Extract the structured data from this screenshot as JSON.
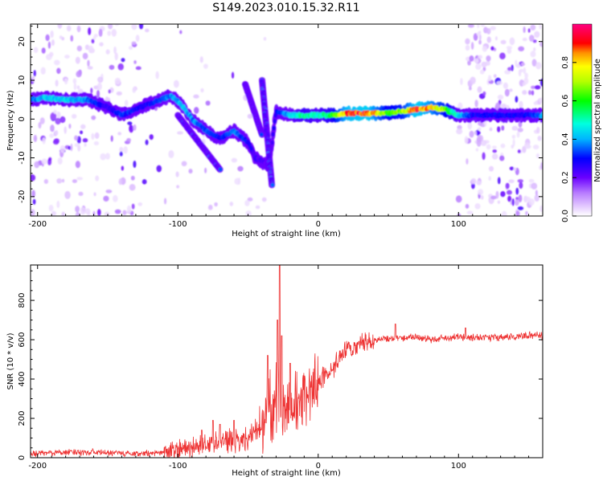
{
  "title": "S149.2023.010.15.32.R11",
  "chart_data": [
    {
      "type": "heatmap",
      "xlabel": "Height of straight line (km)",
      "ylabel": "Frequency (Hz)",
      "xlim": [
        -205,
        160
      ],
      "ylim": [
        -25,
        24.5
      ],
      "x_ticks": [
        -200,
        -100,
        0,
        100
      ],
      "y_ticks": [
        -20,
        -10,
        0,
        10,
        20
      ],
      "tick_labels_x": [
        "-200",
        "-100",
        "0",
        "100"
      ],
      "tick_labels_y": [
        "-20",
        "-10",
        "0",
        "10",
        "20"
      ],
      "colorbar": {
        "label": "Normalized spectral amplitude",
        "range": [
          0,
          1
        ],
        "ticks": [
          0.0,
          0.2,
          0.4,
          0.6,
          0.8
        ],
        "tick_labels": [
          "0.0",
          "0.2",
          "0.4",
          "0.6",
          "0.8"
        ]
      },
      "ridge": [
        {
          "x": -205,
          "f": 5,
          "a": 0.35
        },
        {
          "x": -195,
          "f": 5.5,
          "a": 0.45
        },
        {
          "x": -180,
          "f": 5,
          "a": 0.45
        },
        {
          "x": -165,
          "f": 5,
          "a": 0.4
        },
        {
          "x": -150,
          "f": 3,
          "a": 0.25
        },
        {
          "x": -140,
          "f": 1,
          "a": 0.35
        },
        {
          "x": -130,
          "f": 2.5,
          "a": 0.3
        },
        {
          "x": -120,
          "f": 4,
          "a": 0.3
        },
        {
          "x": -105,
          "f": 6,
          "a": 0.4
        },
        {
          "x": -98,
          "f": 4,
          "a": 0.45
        },
        {
          "x": -90,
          "f": 0,
          "a": 0.4
        },
        {
          "x": -80,
          "f": -3,
          "a": 0.35
        },
        {
          "x": -70,
          "f": -5,
          "a": 0.3
        },
        {
          "x": -60,
          "f": -3,
          "a": 0.4
        },
        {
          "x": -50,
          "f": -6,
          "a": 0.3
        },
        {
          "x": -45,
          "f": -10,
          "a": 0.25
        },
        {
          "x": -35,
          "f": -12,
          "a": 0.22
        },
        {
          "x": -30,
          "f": 2,
          "a": 0.3
        },
        {
          "x": -20,
          "f": 1,
          "a": 0.45
        },
        {
          "x": -10,
          "f": 1,
          "a": 0.55
        },
        {
          "x": 0,
          "f": 1,
          "a": 0.5
        },
        {
          "x": 10,
          "f": 1,
          "a": 0.6
        },
        {
          "x": 20,
          "f": 1.5,
          "a": 0.9
        },
        {
          "x": 35,
          "f": 1.5,
          "a": 0.95
        },
        {
          "x": 50,
          "f": 1.5,
          "a": 0.65
        },
        {
          "x": 60,
          "f": 2,
          "a": 0.7
        },
        {
          "x": 70,
          "f": 2.5,
          "a": 0.95
        },
        {
          "x": 80,
          "f": 3,
          "a": 0.85
        },
        {
          "x": 90,
          "f": 2.5,
          "a": 0.7
        },
        {
          "x": 100,
          "f": 1,
          "a": 0.45
        },
        {
          "x": 110,
          "f": 1,
          "a": 0.3
        },
        {
          "x": 130,
          "f": 1,
          "a": 0.3
        },
        {
          "x": 150,
          "f": 1,
          "a": 0.3
        },
        {
          "x": 160,
          "f": 1,
          "a": 0.4
        }
      ],
      "branches": [
        {
          "x": [
            -40,
            -33
          ],
          "f": [
            10,
            -17
          ],
          "a": 0.3
        },
        {
          "x": [
            -52,
            -40
          ],
          "f": [
            9,
            -4
          ],
          "a": 0.3
        },
        {
          "x": [
            -100,
            -70
          ],
          "f": [
            1,
            -13
          ],
          "a": 0.3
        }
      ],
      "noise_regions": [
        {
          "x": [
            -205,
            -130
          ],
          "f": [
            -25,
            24.5
          ],
          "density": 0.5
        },
        {
          "x": [
            -130,
            -30
          ],
          "f": [
            -25,
            24.5
          ],
          "density": 0.1
        },
        {
          "x": [
            100,
            160
          ],
          "f": [
            -25,
            24.5
          ],
          "density": 0.75
        }
      ]
    },
    {
      "type": "line",
      "xlabel": "Height of straight line (km)",
      "ylabel": "SNR (10 * v/v)",
      "xlim": [
        -205,
        160
      ],
      "ylim": [
        0,
        980
      ],
      "x_ticks": [
        -200,
        -100,
        0,
        100
      ],
      "y_ticks": [
        0,
        200,
        400,
        600,
        800
      ],
      "tick_labels_x": [
        "-200",
        "-100",
        "0",
        "100"
      ],
      "tick_labels_y": [
        "0",
        "200",
        "400",
        "600",
        "800"
      ],
      "color": "#ee3333",
      "series": [
        {
          "x": [
            -205,
            -190,
            -170,
            -150,
            -130,
            -110,
            -100,
            -90,
            -80,
            -70,
            -60,
            -50,
            -40,
            -35,
            -30,
            -25,
            -20,
            -15,
            -10,
            -5,
            0,
            5,
            10,
            15,
            20,
            25,
            30,
            40,
            50,
            60,
            70,
            80,
            90,
            100,
            110,
            120,
            130,
            140,
            150,
            160
          ],
          "values": [
            20,
            25,
            30,
            25,
            20,
            25,
            40,
            50,
            70,
            90,
            80,
            100,
            150,
            220,
            250,
            200,
            260,
            280,
            300,
            320,
            380,
            420,
            450,
            500,
            540,
            560,
            580,
            600,
            605,
            610,
            615,
            600,
            610,
            615,
            610,
            615,
            610,
            615,
            620,
            620
          ],
          "spikes": [
            {
              "x": -27.5,
              "value": 980
            },
            {
              "x": -29,
              "value": 700
            },
            {
              "x": -26,
              "value": 620
            },
            {
              "x": -36,
              "value": 520
            },
            {
              "x": -20,
              "value": 480
            },
            {
              "x": -75,
              "value": 190
            },
            {
              "x": -70,
              "value": 170
            },
            {
              "x": -60,
              "value": 190
            },
            {
              "x": -83,
              "value": 140
            },
            {
              "x": 55,
              "value": 680
            },
            {
              "x": 105,
              "value": 660
            }
          ]
        }
      ]
    }
  ]
}
